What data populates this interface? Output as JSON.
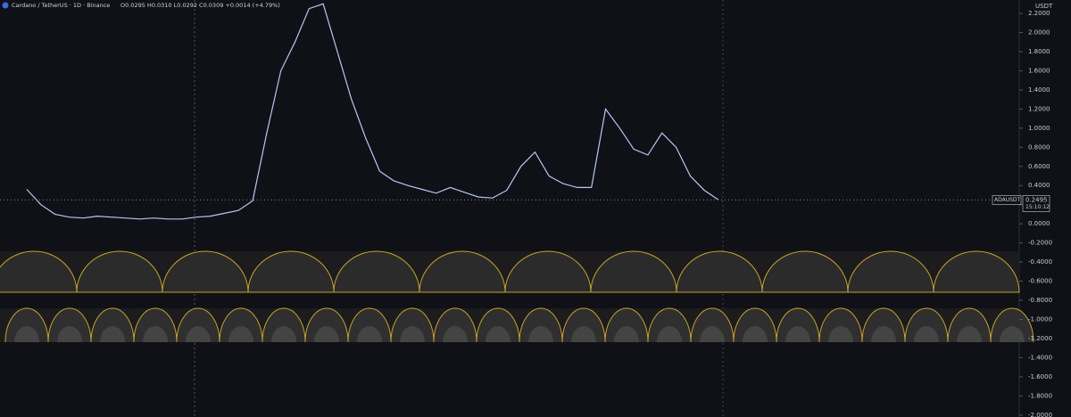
{
  "chart_data": {
    "type": "line",
    "title": "Cardano / TetherUS · 1D · Binance",
    "ohlc": "O0.0295 H0.0310 L0.0292 C0.0309 +0.0014 (+4.79%)",
    "currency": "USDT",
    "symbol": "ADAUSDT",
    "last_price": 0.2495,
    "countdown": "15:10:12",
    "series": [
      {
        "name": "ADAUSDT",
        "color": "#b7c6f5",
        "values": [
          0.36,
          0.2,
          0.1,
          0.07,
          0.06,
          0.08,
          0.07,
          0.06,
          0.05,
          0.06,
          0.05,
          0.05,
          0.07,
          0.08,
          0.11,
          0.14,
          0.24,
          0.95,
          1.6,
          1.9,
          2.25,
          2.3,
          1.8,
          1.3,
          0.9,
          0.55,
          0.45,
          0.4,
          0.36,
          0.32,
          0.38,
          0.33,
          0.28,
          0.27,
          0.35,
          0.6,
          0.75,
          0.5,
          0.42,
          0.38,
          0.38,
          1.2,
          1.0,
          0.78,
          0.72,
          0.95,
          0.8,
          0.5,
          0.35,
          0.25
        ]
      }
    ],
    "ylim": [
      -2.02,
      2.34
    ],
    "yticks": [
      {
        "value": 2.2,
        "label": "2.2000"
      },
      {
        "value": 2.0,
        "label": "2.0000"
      },
      {
        "value": 1.8,
        "label": "1.8000"
      },
      {
        "value": 1.6,
        "label": "1.6000"
      },
      {
        "value": 1.4,
        "label": "1.4000"
      },
      {
        "value": 1.2,
        "label": "1.2000"
      },
      {
        "value": 1.0,
        "label": "1.0000"
      },
      {
        "value": 0.8,
        "label": "0.8000"
      },
      {
        "value": 0.6,
        "label": "0.6000"
      },
      {
        "value": 0.4,
        "label": "0.4000"
      },
      {
        "value": 0.2,
        "label": "0.2000"
      },
      {
        "value": 0,
        "label": "0.0000"
      },
      {
        "value": -0.2,
        "label": "-0.2000"
      },
      {
        "value": -0.4,
        "label": "-0.4000"
      },
      {
        "value": -0.6,
        "label": "-0.6000"
      },
      {
        "value": -0.8,
        "label": "-0.8000"
      },
      {
        "value": -1.0,
        "label": "-1.0000"
      },
      {
        "value": -1.2,
        "label": "-1.2000"
      },
      {
        "value": -1.4,
        "label": "-1.4000"
      },
      {
        "value": -1.6,
        "label": "-1.6000"
      },
      {
        "value": -1.8,
        "label": "-1.8000"
      },
      {
        "value": -2.0,
        "label": "-2.0000"
      }
    ]
  }
}
